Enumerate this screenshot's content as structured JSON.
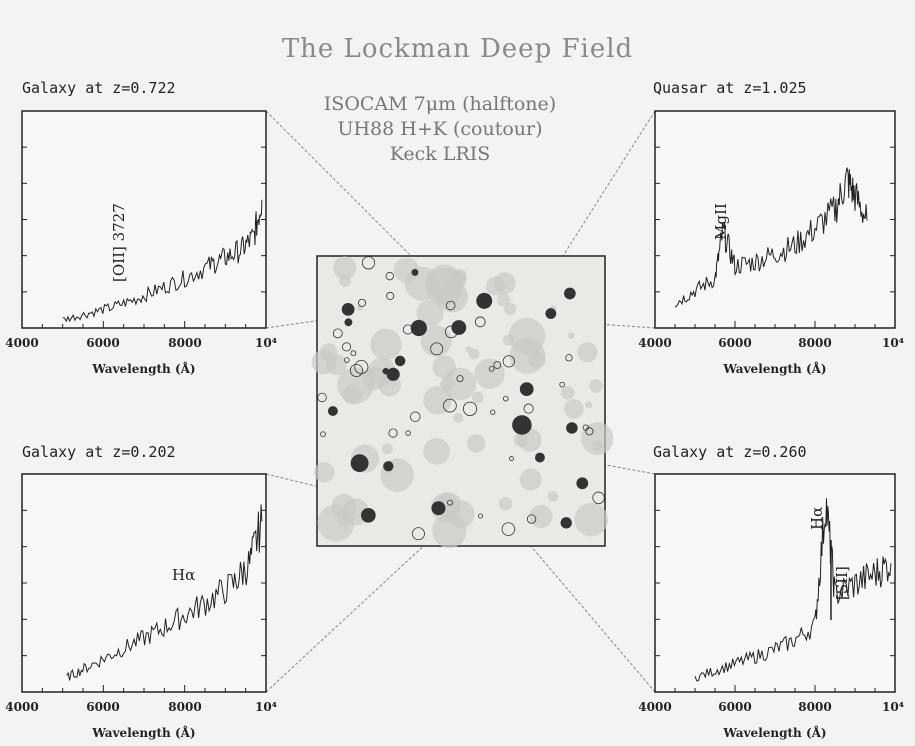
{
  "figure": {
    "title": "The Lockman Deep Field",
    "subtitle_lines": [
      "ISOCAM 7μm (halftone)",
      "UH88 H+K (coutour)",
      "Keck LRIS"
    ],
    "colors": {
      "ink": "#222222",
      "title_gray": "#8a8a8a",
      "paper": "#f3f3f1"
    }
  },
  "chart_data": [
    {
      "type": "line",
      "title": "Galaxy at z=0.722",
      "xlabel": "Wavelength (Å)",
      "xlim": [
        4000,
        10000
      ],
      "tick_labels": [
        "4000",
        "6000",
        "8000",
        "10⁴"
      ],
      "annotations": [
        "[OII] 3727"
      ],
      "x": [
        5000,
        5600,
        6200,
        6800,
        7400,
        8000,
        8600,
        9000,
        9400,
        9700,
        9900
      ],
      "y": [
        0.02,
        0.05,
        0.08,
        0.12,
        0.17,
        0.22,
        0.28,
        0.32,
        0.36,
        0.42,
        0.6
      ]
    },
    {
      "type": "line",
      "title": "Quasar at z=1.025",
      "xlabel": "Wavelength (Å)",
      "xlim": [
        4000,
        10000
      ],
      "tick_labels": [
        "4000",
        "6000",
        "8000",
        "10⁴"
      ],
      "annotations": [
        "MgII"
      ],
      "x": [
        4500,
        5000,
        5500,
        5700,
        6000,
        6500,
        7000,
        7500,
        8000,
        8500,
        8800,
        9000,
        9300
      ],
      "y": [
        0.1,
        0.16,
        0.22,
        0.45,
        0.28,
        0.3,
        0.34,
        0.38,
        0.46,
        0.55,
        0.7,
        0.62,
        0.5
      ]
    },
    {
      "type": "line",
      "title": "Galaxy at z=0.202",
      "xlabel": "Wavelength (Å)",
      "xlim": [
        4000,
        10000
      ],
      "tick_labels": [
        "4000",
        "6000",
        "8000",
        "10⁴"
      ],
      "annotations": [
        "Hα"
      ],
      "x": [
        5100,
        5600,
        6200,
        6800,
        7400,
        8000,
        8600,
        9200,
        9600,
        9900
      ],
      "y": [
        0.05,
        0.1,
        0.16,
        0.22,
        0.28,
        0.35,
        0.42,
        0.5,
        0.6,
        0.8
      ]
    },
    {
      "type": "line",
      "title": "Galaxy at z=0.260",
      "xlabel": "Wavelength (Å)",
      "xlim": [
        4000,
        10000
      ],
      "tick_labels": [
        "4000",
        "6000",
        "8000",
        "10⁴"
      ],
      "annotations": [
        "Hα",
        "[SII]"
      ],
      "x": [
        5000,
        5600,
        6200,
        6800,
        7400,
        8000,
        8270,
        8500,
        9000,
        9500,
        9900
      ],
      "y": [
        0.05,
        0.09,
        0.13,
        0.17,
        0.22,
        0.3,
        0.9,
        0.45,
        0.5,
        0.55,
        0.6
      ]
    }
  ]
}
